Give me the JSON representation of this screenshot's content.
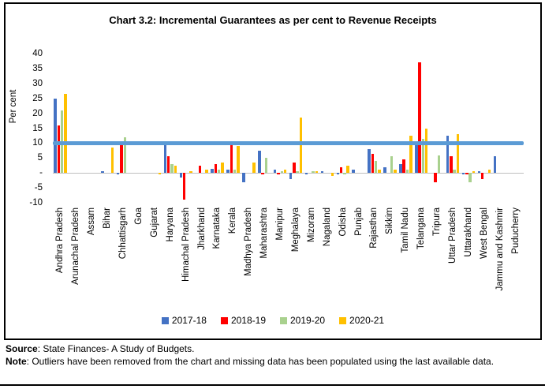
{
  "title": "Chart 3.2: Incremental Guarantees as per cent to Revenue Receipts",
  "footer": {
    "source_label": "Source",
    "source_rest": ": State Finances- A Study of Budgets.",
    "note_label": "Note",
    "note_rest": ": Outliers have been removed from the chart and missing data has been populated using the last available data."
  },
  "chart_data": {
    "type": "bar",
    "title": "Chart 3.2: Incremental Guarantees as per cent to Revenue Receipts",
    "xlabel": "",
    "ylabel": "Per cent",
    "ylim": [
      -10,
      40
    ],
    "grid": false,
    "legend_position": "bottom",
    "reference_line": {
      "y": 10,
      "color": "#5B9BD5",
      "thickness_px": 4.5
    },
    "axis_line_color": "#bfbfbf",
    "yticks": [
      {
        "v": 40,
        "label": "40"
      },
      {
        "v": 35,
        "label": "35"
      },
      {
        "v": 30,
        "label": "30"
      },
      {
        "v": 25,
        "label": "25"
      },
      {
        "v": 20,
        "label": "20"
      },
      {
        "v": 15,
        "label": "15"
      },
      {
        "v": 10,
        "label": "10"
      },
      {
        "v": 5,
        "label": "5"
      },
      {
        "v": 0,
        "label": "-"
      },
      {
        "v": -5,
        "label": "-5"
      },
      {
        "v": -10,
        "label": "-10"
      }
    ],
    "categories": [
      "Andhra Pradesh",
      "Arunachal Pradesh",
      "Assam",
      "Bihar",
      "Chhattisgarh",
      "Goa",
      "Gujarat",
      "Haryana",
      "Himachal Pradesh",
      "Jharkhand",
      "Karnataka",
      "Kerala",
      "Madhya Pradesh",
      "Maharashtra",
      "Manipur",
      "Meghalaya",
      "Mizoram",
      "Nagaland",
      "Odisha",
      "Punjab",
      "Rajasthan",
      "Sikkim",
      "Tamil Nadu",
      "Telangana",
      "Tripura",
      "Uttar Pradesh",
      "Uttarakhand",
      "West Bengal",
      "Jammu and Kashmir",
      "Puducherry"
    ],
    "series": [
      {
        "name": "2017-18",
        "color": "#4472C4",
        "values": [
          25,
          0,
          0,
          0.5,
          -0.5,
          0,
          0,
          10,
          -1.5,
          0,
          1.5,
          1,
          -3,
          7.5,
          1,
          -2,
          -0.5,
          0.5,
          -0.5,
          1,
          8,
          2,
          3,
          10.5,
          0,
          12.5,
          -0.5,
          0.5,
          5.5,
          0
        ]
      },
      {
        "name": "2018-19",
        "color": "#FF0000",
        "values": [
          16,
          0,
          0,
          0,
          10,
          0,
          0,
          5.5,
          -9,
          2.5,
          3,
          9.5,
          0,
          -0.5,
          -0.5,
          3.5,
          0,
          0,
          2,
          0,
          6.5,
          0,
          4.5,
          37,
          -3,
          5.5,
          -0.5,
          -2,
          0,
          0
        ]
      },
      {
        "name": "2019-20",
        "color": "#A9D18E",
        "values": [
          21,
          0,
          0,
          0,
          12,
          0,
          0,
          3,
          0,
          0,
          1,
          1,
          0,
          5,
          0.5,
          0.5,
          0.5,
          0,
          -0.5,
          0,
          4,
          5.5,
          1,
          11.5,
          6,
          1,
          -3,
          0,
          0,
          0
        ]
      },
      {
        "name": "2020-21",
        "color": "#FFC000",
        "values": [
          26.5,
          0,
          0,
          8.5,
          0,
          0,
          -0.5,
          2.5,
          0.5,
          1,
          3.5,
          9,
          3.5,
          0,
          1,
          18.5,
          0.5,
          -1,
          2.5,
          0,
          1,
          1,
          12.5,
          15,
          0,
          13,
          0.5,
          1,
          0,
          0
        ]
      }
    ]
  }
}
